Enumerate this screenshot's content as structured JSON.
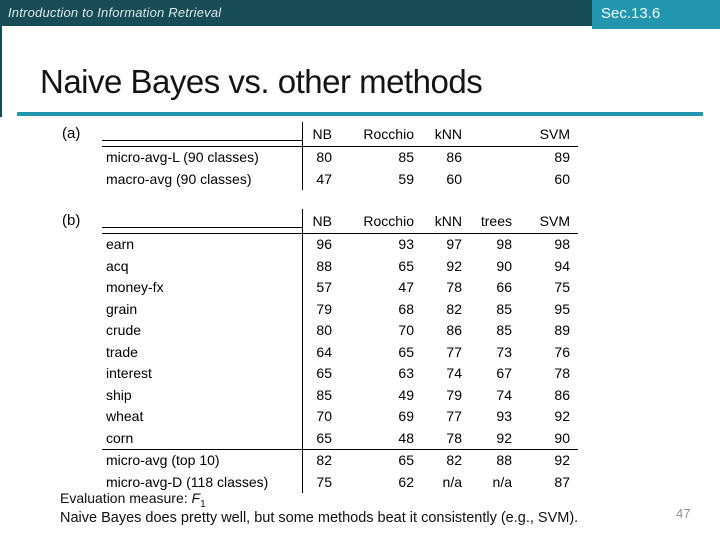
{
  "header": {
    "course": "Introduction to Information Retrieval",
    "section": "Sec.13.6"
  },
  "title": "Naive Bayes vs. other methods",
  "tables": {
    "a": {
      "tag": "(a)",
      "columns": [
        "NB",
        "Rocchio",
        "kNN",
        "SVM"
      ],
      "rows": [
        {
          "label": "micro-avg-L (90 classes)",
          "values": [
            "80",
            "85",
            "86",
            "89"
          ]
        },
        {
          "label": "macro-avg (90 classes)",
          "values": [
            "47",
            "59",
            "60",
            "60"
          ]
        }
      ]
    },
    "b": {
      "tag": "(b)",
      "columns": [
        "NB",
        "Rocchio",
        "kNN",
        "trees",
        "SVM"
      ],
      "rows": [
        {
          "label": "earn",
          "values": [
            "96",
            "93",
            "97",
            "98",
            "98"
          ]
        },
        {
          "label": "acq",
          "values": [
            "88",
            "65",
            "92",
            "90",
            "94"
          ]
        },
        {
          "label": "money-fx",
          "values": [
            "57",
            "47",
            "78",
            "66",
            "75"
          ]
        },
        {
          "label": "grain",
          "values": [
            "79",
            "68",
            "82",
            "85",
            "95"
          ]
        },
        {
          "label": "crude",
          "values": [
            "80",
            "70",
            "86",
            "85",
            "89"
          ]
        },
        {
          "label": "trade",
          "values": [
            "64",
            "65",
            "77",
            "73",
            "76"
          ]
        },
        {
          "label": "interest",
          "values": [
            "65",
            "63",
            "74",
            "67",
            "78"
          ]
        },
        {
          "label": "ship",
          "values": [
            "85",
            "49",
            "79",
            "74",
            "86"
          ]
        },
        {
          "label": "wheat",
          "values": [
            "70",
            "69",
            "77",
            "93",
            "92"
          ]
        },
        {
          "label": "corn",
          "values": [
            "65",
            "48",
            "78",
            "92",
            "90"
          ]
        },
        {
          "label": "micro-avg (top 10)",
          "values": [
            "82",
            "65",
            "82",
            "88",
            "92"
          ],
          "rule_above": true
        },
        {
          "label": "micro-avg-D (118 classes)",
          "values": [
            "75",
            "62",
            "n/a",
            "n/a",
            "87"
          ]
        }
      ]
    }
  },
  "footer": {
    "eval_prefix": "Evaluation measure: ",
    "eval_symbol": "F",
    "eval_sub": "1",
    "conclusion": "Naive Bayes does pretty well, but some methods beat it consistently (e.g., SVM).",
    "page_number": "47"
  },
  "colors": {
    "header_bar": "#174b55",
    "section_badge": "#2296ae",
    "title_rule": "#2296ae",
    "page_number_gray": "#8c929a"
  }
}
